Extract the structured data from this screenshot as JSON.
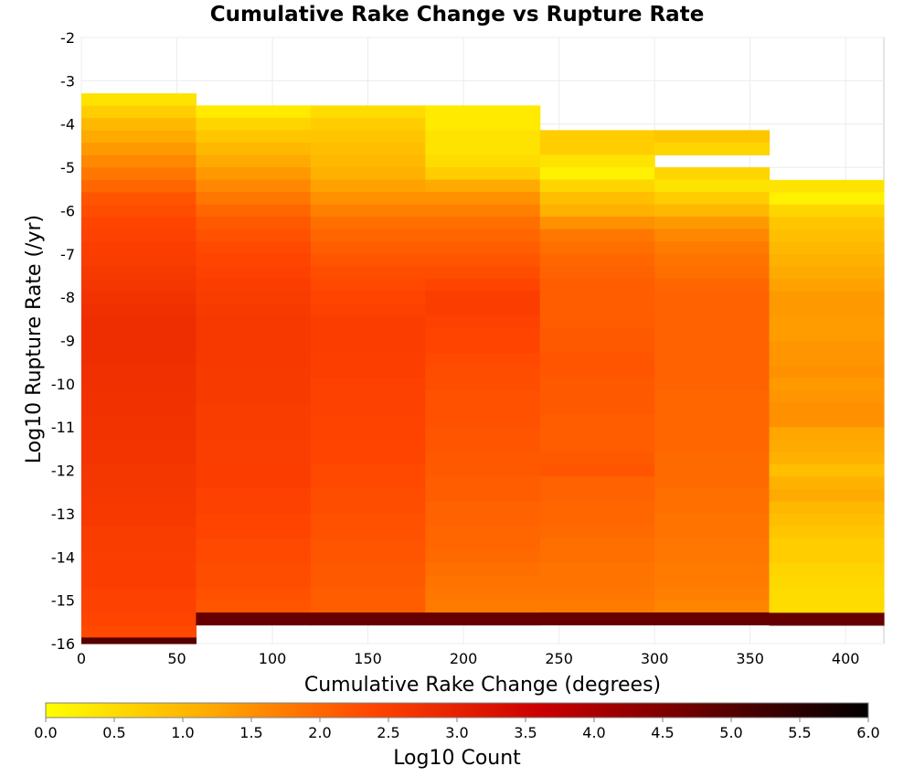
{
  "chart_data": {
    "type": "heatmap",
    "title": "Cumulative Rake Change vs Rupture Rate",
    "xlabel": "Cumulative Rake Change (degrees)",
    "ylabel": "Log10 Rupture Rate (/yr)",
    "xlim": [
      0,
      420
    ],
    "ylim": [
      -16,
      -2
    ],
    "x_ticks": [
      0,
      50,
      100,
      150,
      200,
      250,
      300,
      350,
      400
    ],
    "y_ticks": [
      -2,
      -3,
      -4,
      -5,
      -6,
      -7,
      -8,
      -9,
      -10,
      -11,
      -12,
      -13,
      -14,
      -15,
      -16
    ],
    "x_bin_width": 60,
    "y_bin_height": 0.2857,
    "x_bins": [
      0,
      60,
      120,
      180,
      240,
      300,
      360
    ],
    "colorbar": {
      "label": "Log10 Count",
      "range": [
        0.0,
        6.0
      ],
      "ticks": [
        "0.0",
        "0.5",
        "1.0",
        "1.5",
        "2.0",
        "2.5",
        "3.0",
        "3.5",
        "4.0",
        "4.5",
        "5.0",
        "5.5",
        "6.0"
      ],
      "colors": [
        "#ffff00",
        "#ffaa00",
        "#ff4400",
        "#cc0000",
        "#660000",
        "#000000"
      ]
    },
    "columns": [
      {
        "x_start": 0,
        "y_top": -3.29,
        "values": [
          0.4,
          0.7,
          1.0,
          1.2,
          1.4,
          1.6,
          1.8,
          2.0,
          2.2,
          2.3,
          2.4,
          2.45,
          2.5,
          2.55,
          2.6,
          2.65,
          2.7,
          2.75,
          2.8,
          2.8,
          2.8,
          2.78,
          2.75,
          2.75,
          2.72,
          2.72,
          2.7,
          2.7,
          2.68,
          2.68,
          2.65,
          2.65,
          2.62,
          2.6,
          2.6,
          2.55,
          2.55,
          2.52,
          2.5,
          2.5,
          2.45,
          2.45,
          2.4,
          2.35,
          5.0
        ]
      },
      {
        "x_start": 60,
        "y_top": -3.57,
        "values": [
          0.3,
          0.6,
          0.8,
          1.0,
          1.2,
          1.4,
          1.6,
          1.8,
          2.0,
          2.15,
          2.25,
          2.35,
          2.4,
          2.45,
          2.5,
          2.55,
          2.58,
          2.6,
          2.6,
          2.6,
          2.6,
          2.58,
          2.58,
          2.58,
          2.55,
          2.55,
          2.55,
          2.52,
          2.52,
          2.5,
          2.5,
          2.45,
          2.45,
          2.4,
          2.4,
          2.35,
          2.35,
          2.3,
          2.3,
          2.25,
          2.2,
          4.8
        ]
      },
      {
        "x_start": 120,
        "y_top": -3.57,
        "values": [
          0.5,
          0.7,
          0.8,
          0.9,
          1.0,
          1.1,
          1.3,
          1.5,
          1.7,
          1.9,
          2.0,
          2.1,
          2.2,
          2.3,
          2.35,
          2.4,
          2.45,
          2.5,
          2.5,
          2.5,
          2.48,
          2.48,
          2.45,
          2.45,
          2.45,
          2.42,
          2.42,
          2.4,
          2.4,
          2.35,
          2.35,
          2.3,
          2.3,
          2.25,
          2.25,
          2.2,
          2.2,
          2.15,
          2.15,
          2.1,
          2.1,
          4.8
        ]
      },
      {
        "x_start": 180,
        "y_top": -3.57,
        "values": [
          0.3,
          0.3,
          0.4,
          0.4,
          0.5,
          0.7,
          1.2,
          1.5,
          1.7,
          1.9,
          2.0,
          2.1,
          2.2,
          2.3,
          2.4,
          2.5,
          2.5,
          2.45,
          2.4,
          2.4,
          2.35,
          2.3,
          2.3,
          2.25,
          2.25,
          2.25,
          2.2,
          2.2,
          2.15,
          2.15,
          2.1,
          2.1,
          2.05,
          2.05,
          2.0,
          2.0,
          1.95,
          1.9,
          1.85,
          1.8,
          1.75,
          4.8
        ]
      },
      {
        "x_start": 240,
        "y_top": -4.14,
        "values": [
          0.7,
          0.7,
          0.4,
          0.2,
          0.6,
          0.9,
          1.1,
          1.5,
          1.8,
          1.9,
          2.0,
          2.05,
          2.1,
          2.1,
          2.1,
          2.1,
          2.15,
          2.15,
          2.2,
          2.2,
          2.15,
          2.15,
          2.15,
          2.1,
          2.1,
          2.1,
          2.15,
          2.2,
          2.05,
          2.05,
          2.0,
          2.0,
          1.95,
          1.9,
          1.9,
          1.85,
          1.85,
          1.8,
          1.75,
          4.8
        ]
      },
      {
        "x_start": 300,
        "y_top": -4.14,
        "values": [
          0.8,
          0.6,
          null,
          0.6,
          0.4,
          0.7,
          1.0,
          1.4,
          1.6,
          1.75,
          1.85,
          1.9,
          2.0,
          2.05,
          2.05,
          2.05,
          2.05,
          2.05,
          2.05,
          2.05,
          2.05,
          2.0,
          2.0,
          2.0,
          2.0,
          2.0,
          1.95,
          1.95,
          1.95,
          1.9,
          1.9,
          1.85,
          1.85,
          1.8,
          1.8,
          1.75,
          1.75,
          1.7,
          1.65,
          4.8
        ]
      },
      {
        "x_start": 360,
        "y_top": -5.29,
        "values": [
          0.4,
          0.2,
          0.6,
          0.8,
          0.9,
          1.0,
          1.1,
          1.2,
          1.3,
          1.4,
          1.4,
          1.35,
          1.35,
          1.45,
          1.45,
          1.5,
          1.4,
          1.45,
          1.5,
          1.5,
          1.25,
          1.2,
          1.1,
          0.9,
          1.1,
          1.2,
          1.0,
          0.9,
          0.8,
          0.7,
          0.7,
          0.6,
          0.55,
          0.5,
          0.5,
          4.8
        ]
      }
    ]
  }
}
